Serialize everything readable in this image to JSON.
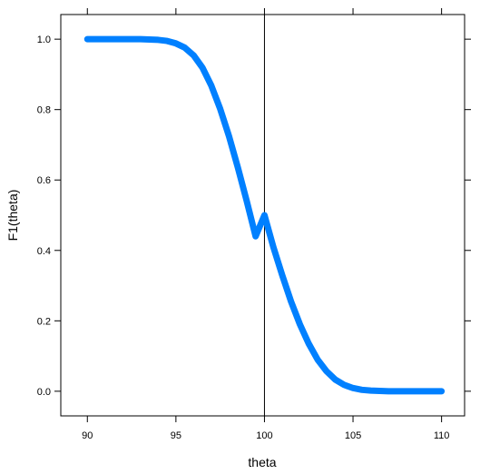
{
  "chart_data": {
    "type": "line",
    "title": "",
    "xlabel": "theta",
    "ylabel": "F1(theta)",
    "xlim": [
      88.5,
      111.3
    ],
    "ylim": [
      -0.07,
      1.07
    ],
    "x_ticks": [
      90,
      95,
      100,
      105,
      110
    ],
    "x_tick_labels": [
      "90",
      "95",
      "100",
      "105",
      "110"
    ],
    "y_ticks": [
      0.0,
      0.2,
      0.4,
      0.6,
      0.8,
      1.0
    ],
    "y_tick_labels": [
      "0.0",
      "0.2",
      "0.4",
      "0.6",
      "0.8",
      "1.0"
    ],
    "grid": false,
    "reference_line": {
      "orientation": "vertical",
      "x": 100,
      "color": "#000000"
    },
    "series": [
      {
        "color": "#0080ff",
        "x": [
          90,
          91,
          92,
          93,
          94,
          94.5,
          95,
          95.5,
          96,
          96.5,
          97,
          97.5,
          98,
          98.5,
          99,
          99.5,
          100,
          100.5,
          101,
          101.5,
          102,
          102.5,
          103,
          103.5,
          104,
          104.5,
          105,
          105.5,
          106,
          107,
          108,
          109,
          110
        ],
        "y": [
          1.0,
          1.0,
          1.0,
          1.0,
          0.998,
          0.995,
          0.988,
          0.976,
          0.954,
          0.919,
          0.868,
          0.802,
          0.724,
          0.635,
          0.54,
          0.44,
          0.5,
          0.41,
          0.33,
          0.255,
          0.19,
          0.135,
          0.09,
          0.057,
          0.033,
          0.018,
          0.009,
          0.004,
          0.002,
          0.0,
          0.0,
          0.0,
          0.0
        ]
      }
    ]
  }
}
